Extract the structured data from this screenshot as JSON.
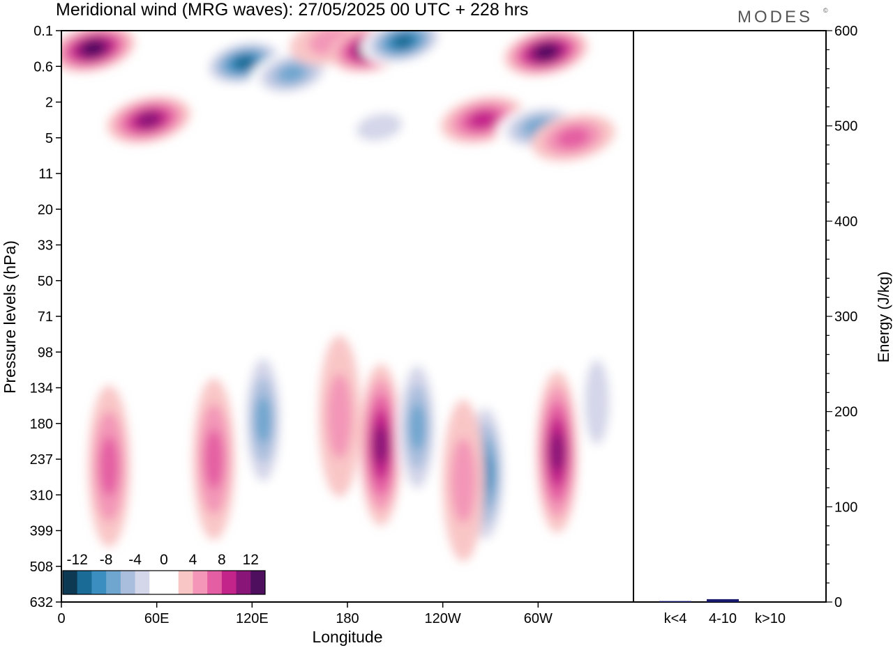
{
  "title": "Meridional wind (MRG waves):  27/05/2025  00 UTC  + 228 hrs",
  "logo": "MODES",
  "logo_mark": "©",
  "chart_data": [
    {
      "type": "heatmap",
      "title": "Meridional wind (MRG waves):  27/05/2025  00 UTC  + 228 hrs",
      "xlabel": "Longitude",
      "ylabel": "Pressure levels (hPa)",
      "x_ticks": [
        "0",
        "60E",
        "120E",
        "180",
        "120W",
        "60W"
      ],
      "x_tick_lon": [
        0,
        60,
        120,
        180,
        240,
        300
      ],
      "xlim": [
        0,
        360
      ],
      "y_levels": [
        "0.1",
        "0.6",
        "2",
        "5",
        "11",
        "20",
        "33",
        "50",
        "71",
        "98",
        "134",
        "180",
        "237",
        "310",
        "399",
        "508",
        "632"
      ],
      "colorbar": {
        "labels": [
          "-12",
          "-8",
          "-4",
          "0",
          "4",
          "8",
          "12"
        ],
        "colors": [
          "#0d3a52",
          "#1a6b96",
          "#3b8fc0",
          "#6fa6cf",
          "#a9bedd",
          "#d4d6e9",
          "#ffffff",
          "#ffffff",
          "#f9c6c6",
          "#f396b7",
          "#e45ea3",
          "#c2248a",
          "#8a1578",
          "#4e0f5e"
        ]
      },
      "features": [
        {
          "lon": 20,
          "level": 0.5,
          "value": 12
        },
        {
          "lon": 55,
          "level": 2.5,
          "value": 10
        },
        {
          "lon": 115,
          "level": 0.9,
          "value": -12
        },
        {
          "lon": 145,
          "level": 1.2,
          "value": -8
        },
        {
          "lon": 170,
          "level": 0.3,
          "value": 4
        },
        {
          "lon": 195,
          "level": 0.5,
          "value": 12
        },
        {
          "lon": 215,
          "level": 0.3,
          "value": -12
        },
        {
          "lon": 200,
          "level": 2.7,
          "value": -4
        },
        {
          "lon": 265,
          "level": 2.5,
          "value": 8
        },
        {
          "lon": 305,
          "level": 0.6,
          "value": 12
        },
        {
          "lon": 300,
          "level": 2.7,
          "value": -8
        },
        {
          "lon": 322,
          "level": 3.0,
          "value": 6
        },
        {
          "lon": 127,
          "level": 10.9,
          "value": -8
        },
        {
          "lon": 30,
          "level": 12.2,
          "value": 6
        },
        {
          "lon": 96,
          "level": 12.0,
          "value": 6
        },
        {
          "lon": 175,
          "level": 10.8,
          "value": 4
        },
        {
          "lon": 201,
          "level": 11.6,
          "value": 10
        },
        {
          "lon": 224,
          "level": 11.1,
          "value": -8
        },
        {
          "lon": 267,
          "level": 12.4,
          "value": -9
        },
        {
          "lon": 312,
          "level": 11.8,
          "value": 10
        },
        {
          "lon": 337,
          "level": 10.4,
          "value": -4
        },
        {
          "lon": 253,
          "level": 12.6,
          "value": 4
        }
      ]
    },
    {
      "type": "bar",
      "categories": [
        "k<4",
        "4-10",
        "k>10"
      ],
      "values": [
        1,
        3,
        0
      ],
      "colors": [
        "#1c1c6e",
        "#1c1c6e",
        "#1c1c6e"
      ],
      "ylabel": "Energy (J/kg)",
      "y_ticks": [
        "0",
        "100",
        "200",
        "300",
        "400",
        "500",
        "600"
      ],
      "ylim": [
        0,
        600
      ]
    }
  ]
}
